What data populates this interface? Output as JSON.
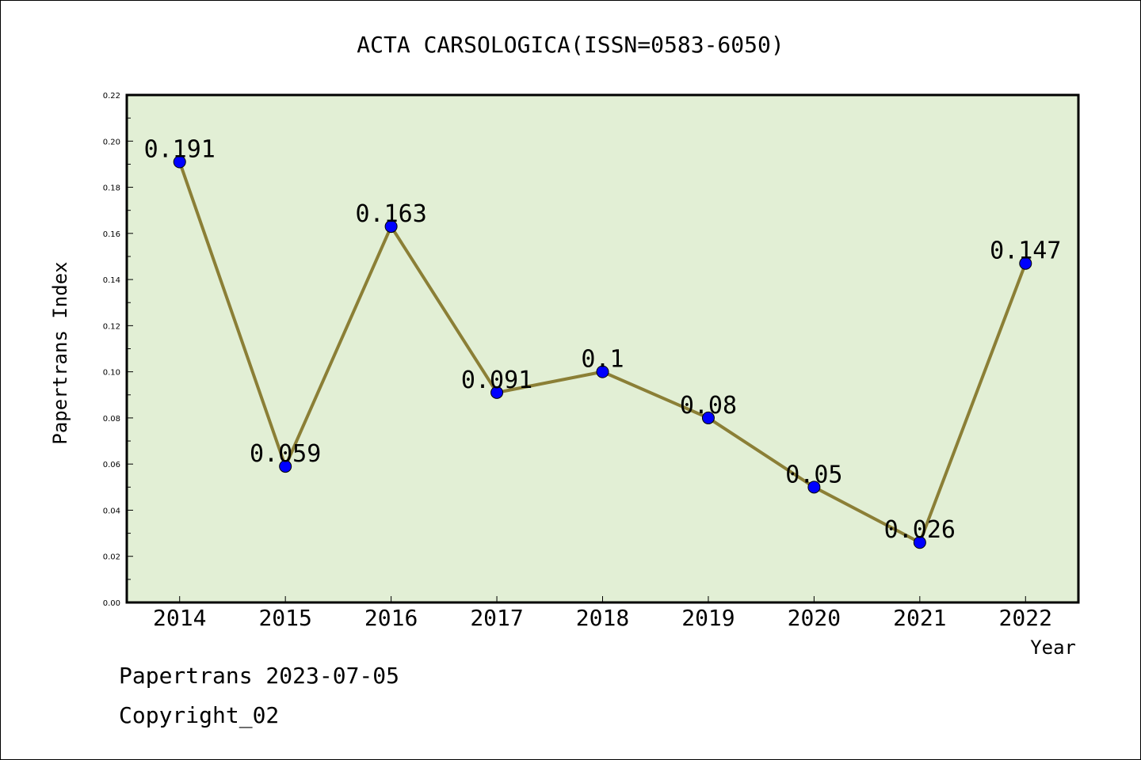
{
  "chart_data": {
    "type": "line",
    "title": "ACTA CARSOLOGICA(ISSN=0583-6050)",
    "xlabel": "Year",
    "ylabel": "Papertrans Index",
    "categories": [
      "2014",
      "2015",
      "2016",
      "2017",
      "2018",
      "2019",
      "2020",
      "2021",
      "2022"
    ],
    "values": [
      0.191,
      0.059,
      0.163,
      0.091,
      0.1,
      0.08,
      0.05,
      0.026,
      0.147
    ],
    "data_labels": [
      "0.191",
      "0.059",
      "0.163",
      "0.091",
      "0.1",
      "0.08",
      "0.05",
      "0.026",
      "0.147"
    ],
    "ylim": [
      0,
      0.22
    ],
    "yticks": [
      "0.00",
      "0.02",
      "0.04",
      "0.06",
      "0.08",
      "0.10",
      "0.12",
      "0.14",
      "0.16",
      "0.18",
      "0.20",
      "0.22"
    ],
    "grid": false,
    "legend": "none",
    "colors": {
      "plot_background": "#e2efd5",
      "line": "#8b7f36",
      "marker": "#0000ff"
    }
  },
  "footer": {
    "date_text": "Papertrans 2023-07-05",
    "copyright_text": "Copyright_02"
  }
}
